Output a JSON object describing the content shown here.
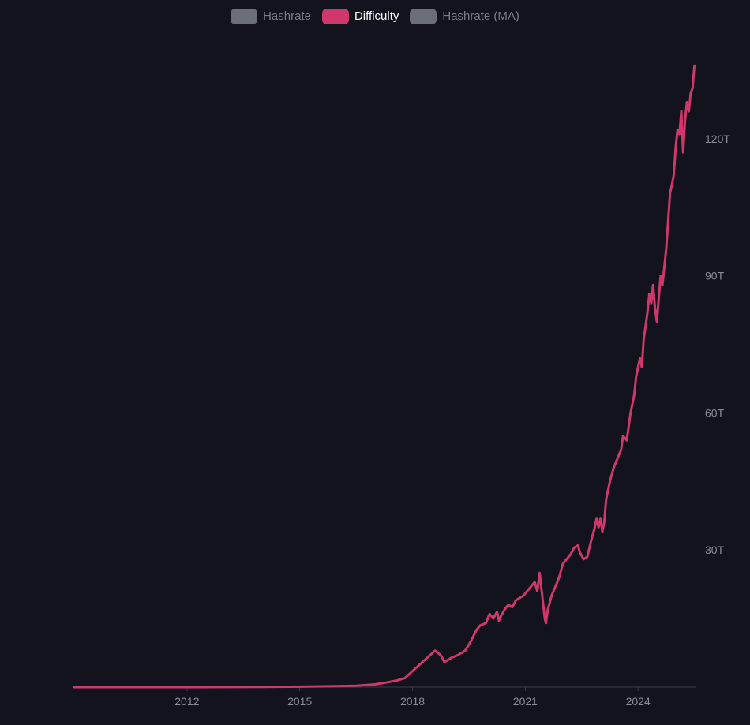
{
  "legend": [
    {
      "label": "Hashrate",
      "color": "#6b6e77",
      "active": false
    },
    {
      "label": "Difficulty",
      "color": "#d0386b",
      "active": true
    },
    {
      "label": "Hashrate (MA)",
      "color": "#6b6e77",
      "active": false
    }
  ],
  "colors": {
    "background": "#12131c",
    "line": "#d0386b",
    "axis_text": "#8a8c93",
    "axis_line": "#3c3e48"
  },
  "chart_data": {
    "type": "line",
    "title": "",
    "xlabel": "",
    "ylabel": "",
    "y_axis_position": "right",
    "grid": false,
    "legend_position": "top-center",
    "xlim": [
      2009.0,
      2025.55
    ],
    "ylim": [
      0,
      140
    ],
    "y_unit": "T",
    "x_ticks": [
      {
        "value": 2012,
        "label": "2012"
      },
      {
        "value": 2015,
        "label": "2015"
      },
      {
        "value": 2018,
        "label": "2018"
      },
      {
        "value": 2021,
        "label": "2021"
      },
      {
        "value": 2024,
        "label": "2024"
      }
    ],
    "y_ticks": [
      {
        "value": 30,
        "label": "30T"
      },
      {
        "value": 60,
        "label": "60T"
      },
      {
        "value": 90,
        "label": "90T"
      },
      {
        "value": 120,
        "label": "120T"
      }
    ],
    "series": [
      {
        "name": "Difficulty",
        "x": [
          2009.0,
          2012.0,
          2014.0,
          2015.0,
          2016.0,
          2016.5,
          2017.0,
          2017.3,
          2017.6,
          2017.8,
          2018.0,
          2018.2,
          2018.4,
          2018.6,
          2018.75,
          2018.85,
          2018.95,
          2019.05,
          2019.2,
          2019.4,
          2019.55,
          2019.7,
          2019.8,
          2019.95,
          2020.05,
          2020.15,
          2020.25,
          2020.3,
          2020.35,
          2020.45,
          2020.55,
          2020.65,
          2020.75,
          2020.85,
          2020.95,
          2021.05,
          2021.15,
          2021.25,
          2021.32,
          2021.38,
          2021.45,
          2021.52,
          2021.55,
          2021.6,
          2021.7,
          2021.8,
          2021.9,
          2022.0,
          2022.1,
          2022.2,
          2022.3,
          2022.4,
          2022.45,
          2022.55,
          2022.65,
          2022.75,
          2022.85,
          2022.9,
          2022.95,
          2023.0,
          2023.05,
          2023.1,
          2023.15,
          2023.25,
          2023.35,
          2023.45,
          2023.55,
          2023.6,
          2023.7,
          2023.75,
          2023.8,
          2023.85,
          2023.9,
          2023.95,
          2024.05,
          2024.1,
          2024.15,
          2024.2,
          2024.25,
          2024.3,
          2024.35,
          2024.4,
          2024.45,
          2024.5,
          2024.55,
          2024.6,
          2024.65,
          2024.7,
          2024.75,
          2024.8,
          2024.85,
          2024.9,
          2024.95,
          2025.0,
          2025.05,
          2025.1,
          2025.15,
          2025.2,
          2025.25,
          2025.3,
          2025.35,
          2025.4,
          2025.45,
          2025.5
        ],
        "y": [
          0,
          0,
          0.05,
          0.1,
          0.2,
          0.3,
          0.6,
          1.0,
          1.5,
          2.0,
          3.5,
          5.0,
          6.5,
          8.0,
          7.0,
          5.5,
          6.0,
          6.5,
          7.0,
          8.0,
          10.0,
          12.5,
          13.5,
          14.0,
          16.0,
          15.0,
          16.5,
          14.5,
          15.5,
          17.0,
          18.0,
          17.5,
          19.0,
          19.5,
          20.0,
          21.0,
          22.0,
          23.0,
          21.0,
          25.0,
          20.0,
          15.0,
          14.0,
          17.0,
          20.0,
          22.0,
          24.0,
          27.0,
          28.0,
          29.0,
          30.5,
          31.0,
          29.5,
          28.0,
          28.5,
          32.0,
          35.0,
          37.0,
          35.0,
          37.0,
          34.0,
          36.0,
          41.0,
          45.0,
          48.0,
          50.0,
          52.0,
          55.0,
          54.0,
          57.0,
          60.0,
          62.0,
          64.0,
          68.0,
          72.0,
          70.0,
          76.0,
          79.0,
          82.0,
          86.0,
          84.0,
          88.0,
          83.0,
          80.0,
          85.0,
          90.0,
          88.0,
          92.0,
          96.0,
          102.0,
          108.0,
          110.0,
          112.0,
          118.0,
          122.0,
          121.0,
          126.0,
          117.0,
          124.0,
          128.0,
          126.0,
          130.0,
          131.0,
          136.0
        ]
      }
    ]
  }
}
